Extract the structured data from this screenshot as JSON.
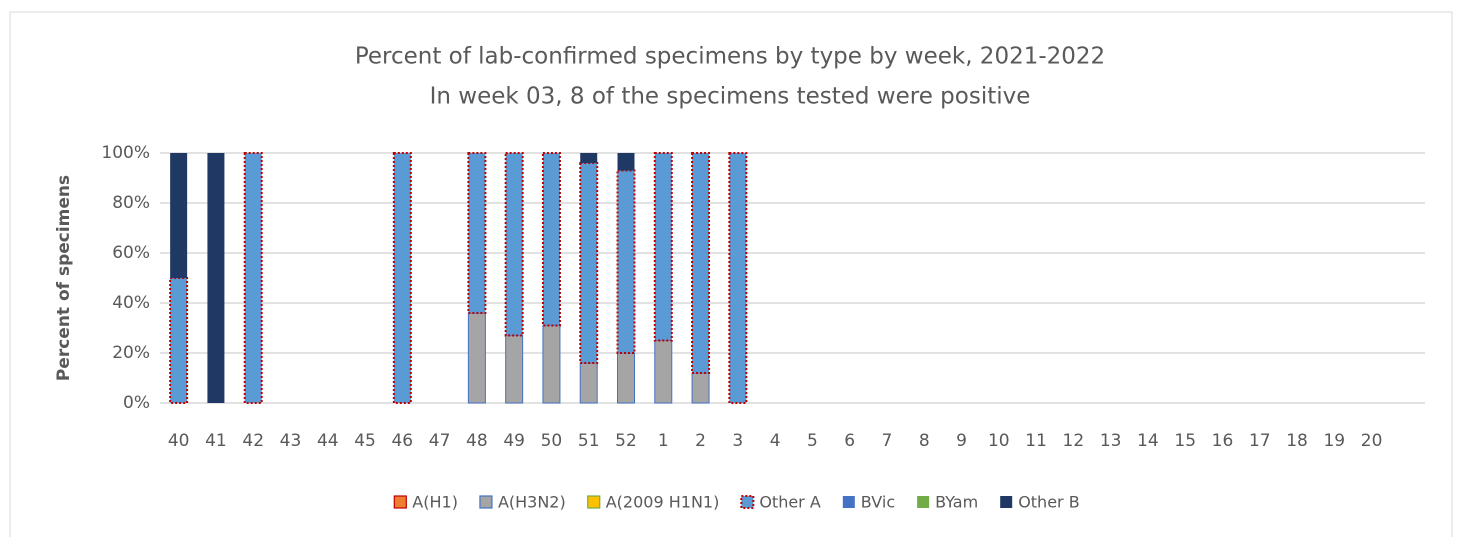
{
  "chart_data": {
    "type": "stacked_bar",
    "title": "Percent of lab-confirmed specimens by type by week, 2021-2022",
    "subtitle": "In week 03, 8 of the specimens tested were positive",
    "y_label": "Percent of specimens",
    "categories": [
      "40",
      "41",
      "42",
      "43",
      "44",
      "45",
      "46",
      "47",
      "48",
      "49",
      "50",
      "51",
      "52",
      "1",
      "2",
      "3",
      "4",
      "5",
      "6",
      "7",
      "8",
      "9",
      "10",
      "11",
      "12",
      "13",
      "14",
      "15",
      "16",
      "17",
      "18",
      "19",
      "20"
    ],
    "ylim": [
      0,
      100
    ],
    "yticks": [
      {
        "value": 0,
        "label": "0%"
      },
      {
        "value": 20,
        "label": "20%"
      },
      {
        "value": 40,
        "label": "40%"
      },
      {
        "value": 60,
        "label": "60%"
      },
      {
        "value": 80,
        "label": "80%"
      },
      {
        "value": 100,
        "label": "100%"
      }
    ],
    "grid": true,
    "legend": "bottom",
    "series": [
      {
        "name": "A(H1)",
        "color": "#ed7d31",
        "edgecolor": "#c00000",
        "values": [
          0,
          0,
          0,
          0,
          0,
          0,
          0,
          0,
          0,
          0,
          0,
          0,
          0,
          0,
          0,
          0,
          null,
          null,
          null,
          null,
          null,
          null,
          null,
          null,
          null,
          null,
          null,
          null,
          null,
          null,
          null,
          null,
          null
        ]
      },
      {
        "name": "A(H3N2)",
        "color": "#a5a5a5",
        "edgecolor": "#4472c4",
        "values": [
          0,
          0,
          0,
          0,
          0,
          0,
          0,
          0,
          36,
          27,
          31,
          16,
          20,
          25,
          12,
          0,
          null,
          null,
          null,
          null,
          null,
          null,
          null,
          null,
          null,
          null,
          null,
          null,
          null,
          null,
          null,
          null,
          null
        ]
      },
      {
        "name": "A(2009 H1N1)",
        "color": "#ffc000",
        "edgecolor": "#70ad47",
        "values": [
          0,
          0,
          0,
          0,
          0,
          0,
          0,
          0,
          0,
          0,
          0,
          0,
          0,
          0,
          0,
          0,
          null,
          null,
          null,
          null,
          null,
          null,
          null,
          null,
          null,
          null,
          null,
          null,
          null,
          null,
          null,
          null,
          null
        ]
      },
      {
        "name": "Other A",
        "color": "#5b9bd5",
        "edgecolor": "#c00000",
        "edgestyle": "dotted",
        "values": [
          50,
          0,
          100,
          0,
          0,
          0,
          100,
          0,
          64,
          73,
          69,
          80,
          73,
          75,
          88,
          100,
          null,
          null,
          null,
          null,
          null,
          null,
          null,
          null,
          null,
          null,
          null,
          null,
          null,
          null,
          null,
          null,
          null
        ]
      },
      {
        "name": "BVic",
        "color": "#4472c4",
        "values": [
          0,
          0,
          0,
          0,
          0,
          0,
          0,
          0,
          0,
          0,
          0,
          0,
          0,
          0,
          0,
          0,
          null,
          null,
          null,
          null,
          null,
          null,
          null,
          null,
          null,
          null,
          null,
          null,
          null,
          null,
          null,
          null,
          null
        ]
      },
      {
        "name": "BYam",
        "color": "#70ad47",
        "values": [
          0,
          0,
          0,
          0,
          0,
          0,
          0,
          0,
          0,
          0,
          0,
          0,
          0,
          0,
          0,
          0,
          null,
          null,
          null,
          null,
          null,
          null,
          null,
          null,
          null,
          null,
          null,
          null,
          null,
          null,
          null,
          null,
          null
        ]
      },
      {
        "name": "Other B",
        "color": "#203864",
        "values": [
          50,
          100,
          0,
          0,
          0,
          0,
          0,
          0,
          0,
          0,
          0,
          4,
          7,
          0,
          0,
          0,
          null,
          null,
          null,
          null,
          null,
          null,
          null,
          null,
          null,
          null,
          null,
          null,
          null,
          null,
          null,
          null,
          null
        ]
      }
    ]
  }
}
